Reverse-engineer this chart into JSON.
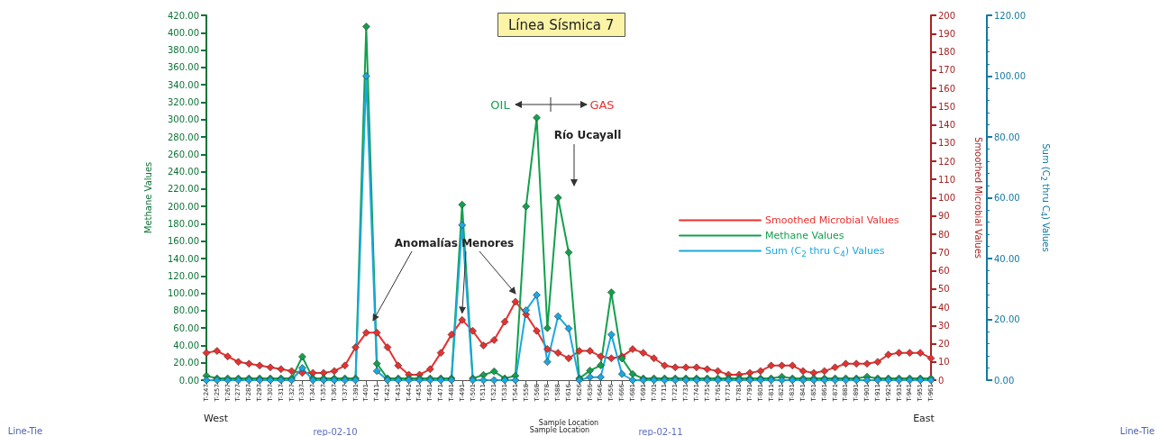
{
  "chart_data": {
    "type": "line",
    "title": "Línea Sísmica 7",
    "xlabel": "Sample Location",
    "ylabel": "Methane Values",
    "y2label": "Smoothed Microbial Values",
    "y3label": "Sum (C$_{2}$ thru C$_{4}$) Values",
    "categories": [
      "T-247",
      "T-257",
      "T-267",
      "T-277",
      "T-287",
      "T-297",
      "T-307",
      "T-317",
      "T-327",
      "T-337",
      "T-347",
      "T-357",
      "T-367",
      "T-377",
      "T-391",
      "T-401",
      "T-411",
      "T-421",
      "T-431",
      "T-441",
      "T-451",
      "T-461",
      "T-471",
      "T-481",
      "T-491",
      "T-501",
      "T-511",
      "T-521",
      "T-531",
      "T-541",
      "T-558",
      "T-568",
      "T-578",
      "T-588",
      "T-616",
      "T-626",
      "T-636",
      "T-646",
      "T-656",
      "T-666",
      "T-681",
      "T-691",
      "T-701",
      "T-711",
      "T-721",
      "T-731",
      "T-741",
      "T-751",
      "T-761",
      "T-771",
      "T-781",
      "T-791",
      "T-801",
      "T-811",
      "T-821",
      "T-831",
      "T-841",
      "T-851",
      "T-861",
      "T-871",
      "T-881",
      "T-891",
      "T-901",
      "T-911",
      "T-921",
      "T-931",
      "T-941",
      "T-951",
      "T-961"
    ],
    "series": [
      {
        "name": "Smoothed Microbial Values",
        "color": "#e8312f",
        "axis": "y2",
        "values": [
          15,
          16,
          13,
          10,
          9,
          8,
          7,
          6,
          5,
          4,
          4,
          4,
          5,
          8,
          18,
          26,
          26,
          18,
          8,
          3,
          3,
          6,
          15,
          25,
          33,
          27,
          19,
          22,
          32,
          43,
          36,
          27,
          17,
          15,
          12,
          16,
          16,
          13,
          12,
          13,
          17,
          15,
          12,
          8,
          7,
          7,
          7,
          6,
          5,
          3,
          3,
          4,
          5,
          8,
          8,
          8,
          5,
          4,
          5,
          7,
          9,
          9,
          9,
          10,
          14,
          15,
          15,
          15,
          12
        ]
      },
      {
        "name": "Methane Values",
        "color": "#12a04c",
        "values": [
          5,
          2,
          2,
          2,
          2,
          2,
          2,
          2,
          2,
          27,
          2,
          2,
          2,
          2,
          2,
          407,
          19,
          2,
          2,
          2,
          2,
          2,
          2,
          2,
          202,
          2,
          6,
          10,
          2,
          5,
          200,
          302,
          60,
          210,
          147,
          2,
          11,
          17,
          101,
          25,
          7,
          2,
          2,
          2,
          2,
          2,
          2,
          2,
          2,
          2,
          2,
          2,
          2,
          2,
          4,
          2,
          2,
          2,
          2,
          2,
          2,
          2,
          4,
          2,
          2,
          2,
          2,
          2,
          2
        ]
      },
      {
        "name": "Sum (C$_{2}$ thru C$_{4}$) Values",
        "color": "#1aa8e0",
        "axis": "y3",
        "values": [
          0,
          0,
          0,
          0,
          0,
          0,
          0,
          0,
          0,
          4,
          0,
          0,
          0,
          0,
          0,
          100,
          3,
          0,
          0,
          0,
          0,
          0,
          0,
          0,
          51,
          0,
          0,
          0,
          0,
          0,
          23,
          28,
          6,
          21,
          17,
          0,
          1,
          1,
          15,
          2,
          0,
          0,
          0,
          0,
          0,
          0,
          0,
          0,
          0,
          0,
          0,
          0,
          0,
          0,
          0,
          0,
          0,
          0,
          0,
          0,
          0,
          0,
          0,
          0,
          0,
          0,
          0,
          0,
          0
        ]
      }
    ],
    "ylim": [
      0,
      420
    ],
    "yticks": [
      {
        "value": 0,
        "label": "0.00"
      },
      {
        "value": 20,
        "label": "20.00"
      },
      {
        "value": 40,
        "label": "40.00"
      },
      {
        "value": 60,
        "label": "60.00"
      },
      {
        "value": 80,
        "label": "80.00"
      },
      {
        "value": 100,
        "label": "100.00"
      },
      {
        "value": 120,
        "label": "120.00"
      },
      {
        "value": 140,
        "label": "140.00"
      },
      {
        "value": 160,
        "label": "160.00"
      },
      {
        "value": 180,
        "label": "180.00"
      },
      {
        "value": 200,
        "label": "200.00"
      },
      {
        "value": 220,
        "label": "220.00"
      },
      {
        "value": 240,
        "label": "240.00"
      },
      {
        "value": 260,
        "label": "260.00"
      },
      {
        "value": 280,
        "label": "280.00"
      },
      {
        "value": 300,
        "label": "300.00"
      },
      {
        "value": 320,
        "label": "320.00"
      },
      {
        "value": 340,
        "label": "340.00"
      },
      {
        "value": 360,
        "label": "360.00"
      },
      {
        "value": 380,
        "label": "380.00"
      },
      {
        "value": 400,
        "label": "400.00"
      },
      {
        "value": 420,
        "label": "420.00"
      }
    ],
    "y2lim": [
      0,
      200
    ],
    "y2ticks": [
      0,
      10,
      20,
      30,
      40,
      50,
      60,
      70,
      80,
      90,
      100,
      110,
      120,
      130,
      140,
      150,
      160,
      170,
      180,
      190,
      200
    ],
    "y3lim": [
      0,
      120
    ],
    "y3ticks": [
      {
        "value": 0,
        "label": "0.00"
      },
      {
        "value": 20,
        "label": "20.00"
      },
      {
        "value": 40,
        "label": "40.00"
      },
      {
        "value": 60,
        "label": "60.00"
      },
      {
        "value": 80,
        "label": "80.00"
      },
      {
        "value": 100,
        "label": "100.00"
      },
      {
        "value": 120,
        "label": "120.00"
      }
    ],
    "marker": "diamond",
    "legend": "right",
    "annotations": [
      "OIL",
      "GAS",
      "Río Ucayall",
      {
        "text": "Anomalías Menores",
        "x": "T-491",
        "y": 69
      },
      "West",
      "East",
      "Sample Location",
      "Line-Tie",
      "Line-Tie",
      "rep-02-10",
      "rep-02-11"
    ]
  }
}
